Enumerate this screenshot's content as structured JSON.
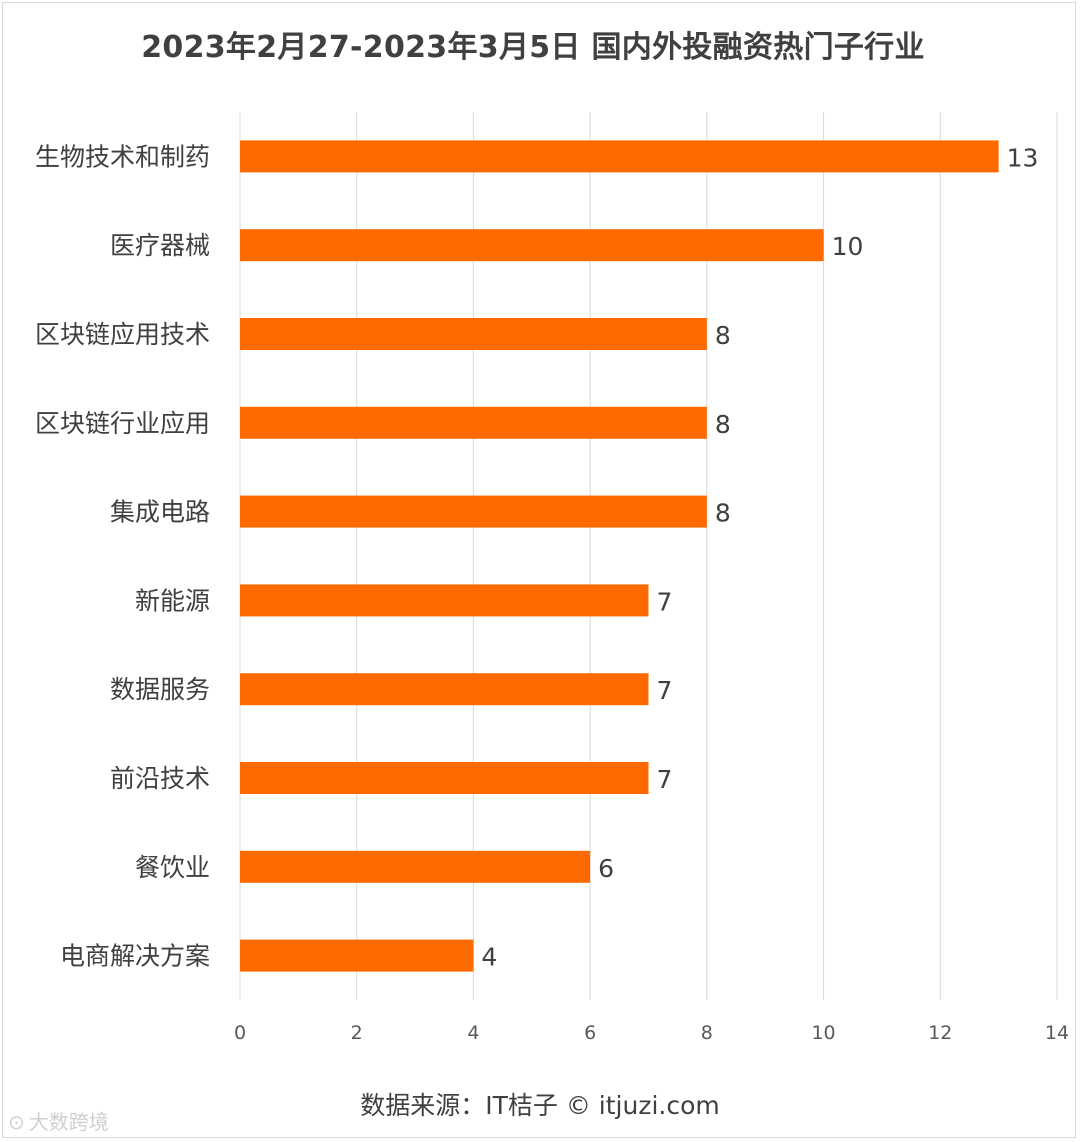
{
  "title": "2023年2月27-2023年3月5日 国内外投融资热门子行业",
  "source_note": "数据来源：IT桔子 © itjuzi.com",
  "watermark": "大数跨境",
  "colors": {
    "bar": "#FF6A00",
    "grid": "#d9d9d9",
    "text": "#404040"
  },
  "chart_data": {
    "type": "bar",
    "orientation": "horizontal",
    "title": "2023年2月27-2023年3月5日 国内外投融资热门子行业",
    "categories": [
      "生物技术和制药",
      "医疗器械",
      "区块链应用技术",
      "区块链行业应用",
      "集成电路",
      "新能源",
      "数据服务",
      "前沿技术",
      "餐饮业",
      "电商解决方案"
    ],
    "values": [
      13,
      10,
      8,
      8,
      8,
      7,
      7,
      7,
      6,
      4
    ],
    "xlim": [
      0,
      14
    ],
    "xticks": [
      0,
      2,
      4,
      6,
      8,
      10,
      12,
      14
    ],
    "grid": "vertical",
    "data_labels": true,
    "legend": "none"
  }
}
